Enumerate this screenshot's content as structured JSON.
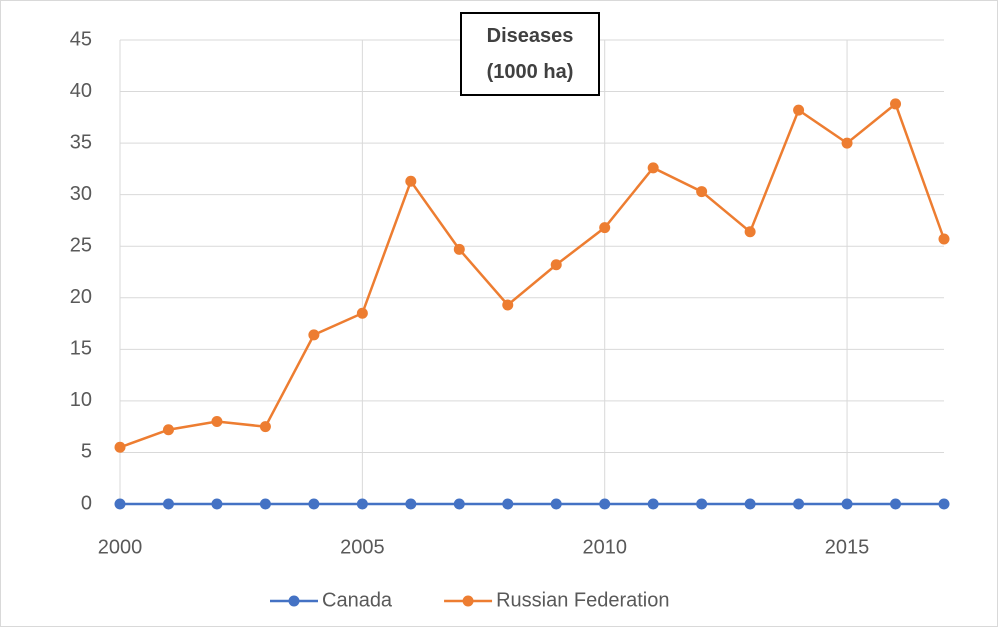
{
  "chart_data": {
    "type": "line",
    "title": "Diseases (1000 ha)",
    "x": [
      2000,
      2001,
      2002,
      2003,
      2004,
      2005,
      2006,
      2007,
      2008,
      2009,
      2010,
      2011,
      2012,
      2013,
      2014,
      2015,
      2016,
      2017
    ],
    "series": [
      {
        "name": "Canada",
        "color": "#4472c4",
        "values": [
          0,
          0,
          0,
          0,
          0,
          0,
          0,
          0,
          0,
          0,
          0,
          0,
          0,
          0,
          0,
          0,
          0,
          0
        ]
      },
      {
        "name": "Russian Federation",
        "color": "#ed7d31",
        "values": [
          5.5,
          7.2,
          8.0,
          7.5,
          16.4,
          18.5,
          31.3,
          24.7,
          19.3,
          23.2,
          26.8,
          32.6,
          30.3,
          26.4,
          38.2,
          35.0,
          38.8,
          25.7
        ]
      }
    ],
    "xlim": [
      2000,
      2017
    ],
    "xticks": [
      2000,
      2005,
      2010,
      2015
    ],
    "ylim": [
      0,
      45
    ],
    "yticks": [
      0,
      5,
      10,
      15,
      20,
      25,
      30,
      35,
      40,
      45
    ],
    "grid": true,
    "legend": "bottom"
  }
}
